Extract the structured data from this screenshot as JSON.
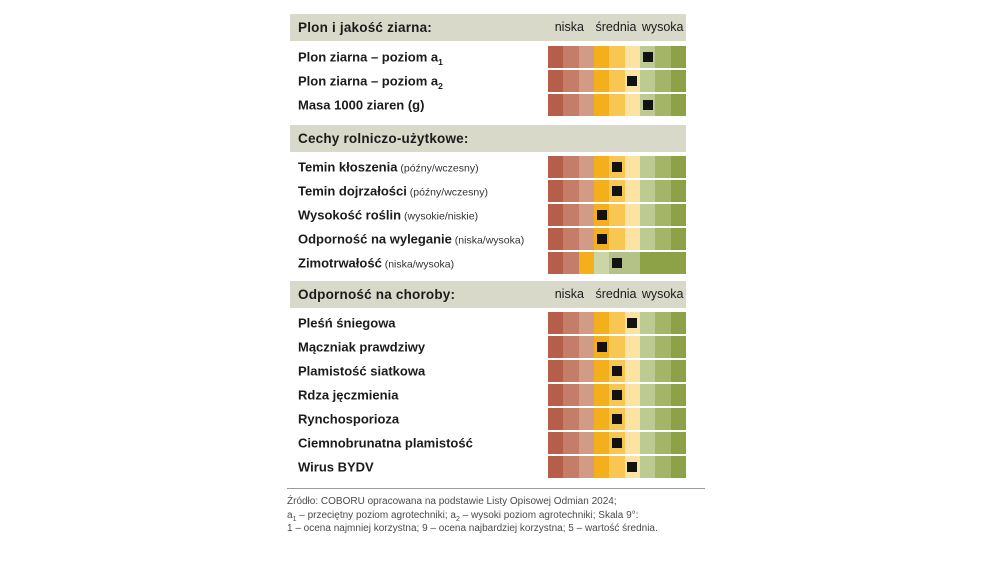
{
  "scale_labels": [
    "niska",
    "średnia",
    "wysoka"
  ],
  "colors": {
    "header_bg": "#d9d9ca",
    "marker": "#121212",
    "scales": {
      "standard": [
        "#b55f4a",
        "#c47d69",
        "#d29b86",
        "#f4b01c",
        "#f8c751",
        "#fbe3a3",
        "#bdca92",
        "#a5b567",
        "#8da246"
      ],
      "winter": [
        "#b55f4a",
        "#c47d69",
        "#f4b01c",
        "#ccd5a6",
        "#b4c287",
        "#b4c287",
        "#8da246",
        "#8da246",
        "#8da246"
      ]
    }
  },
  "sections": [
    {
      "id": "plon-i-jakosc-ziarna",
      "title": "Plon i jakość ziarna:",
      "show_scale_labels": true,
      "rows": [
        {
          "label": "Plon ziarna – poziom a",
          "sub": "1",
          "note": "",
          "value": 7,
          "scale": "standard"
        },
        {
          "label": "Plon ziarna – poziom a",
          "sub": "2",
          "note": "",
          "value": 6,
          "scale": "standard"
        },
        {
          "label": "Masa 1000 ziaren (g)",
          "sub": "",
          "note": "",
          "value": 7,
          "scale": "standard"
        }
      ]
    },
    {
      "id": "cechy-rolniczo-uzytkowe",
      "title": "Cechy rolniczo-użytkowe:",
      "show_scale_labels": false,
      "rows": [
        {
          "label": "Temin kłoszenia",
          "sub": "",
          "note": "(późny/wczesny)",
          "value": 5,
          "scale": "standard"
        },
        {
          "label": "Temin dojrzałości",
          "sub": "",
          "note": "(późny/wczesny)",
          "value": 5,
          "scale": "standard"
        },
        {
          "label": "Wysokość roślin",
          "sub": "",
          "note": "(wysokie/niskie)",
          "value": 4,
          "scale": "standard"
        },
        {
          "label": "Odporność na wyleganie",
          "sub": "",
          "note": "(niska/wysoka)",
          "value": 4,
          "scale": "standard"
        },
        {
          "label": "Zimotrwałość",
          "sub": "",
          "note": "(niska/wysoka)",
          "value": 5,
          "scale": "winter"
        }
      ]
    },
    {
      "id": "odpornosc-na-choroby",
      "title": "Odporność na choroby:",
      "show_scale_labels": true,
      "rows": [
        {
          "label": "Pleśń śniegowa",
          "sub": "",
          "note": "",
          "value": 6,
          "scale": "standard"
        },
        {
          "label": "Mączniak prawdziwy",
          "sub": "",
          "note": "",
          "value": 4,
          "scale": "standard"
        },
        {
          "label": "Plamistość siatkowa",
          "sub": "",
          "note": "",
          "value": 5,
          "scale": "standard"
        },
        {
          "label": "Rdza jęczmienia",
          "sub": "",
          "note": "",
          "value": 5,
          "scale": "standard"
        },
        {
          "label": "Rynchosporioza",
          "sub": "",
          "note": "",
          "value": 5,
          "scale": "standard"
        },
        {
          "label": "Ciemnobrunatna plamistość",
          "sub": "",
          "note": "",
          "value": 5,
          "scale": "standard"
        },
        {
          "label": "Wirus BYDV",
          "sub": "",
          "note": "",
          "value": 6,
          "scale": "standard"
        }
      ]
    }
  ],
  "footer": {
    "lines": [
      [
        {
          "t": "Źródło: COBORU opracowana na podstawie Listy Opisowej Odmian 2024;"
        }
      ],
      [
        {
          "t": "a"
        },
        {
          "s": "1"
        },
        {
          "t": " – przeciętny poziom agrotechniki; a"
        },
        {
          "s": "2"
        },
        {
          "t": " – wysoki poziom agrotechniki; Skala 9°:"
        }
      ],
      [
        {
          "t": "1 – ocena najmniej korzystna; 9 – ocena najbardziej korzystna; 5 – wartość średnia."
        }
      ]
    ]
  },
  "chart_data": {
    "type": "table",
    "title": "Ocena cech odmiany na skali 9-stopniowej",
    "scale": {
      "min": 1,
      "max": 9,
      "mid": 5,
      "labels": [
        "niska",
        "średnia",
        "wysoka"
      ]
    },
    "groups": [
      {
        "group": "Plon i jakość ziarna",
        "rows": [
          {
            "name": "Plon ziarna – poziom a1",
            "rating": 7
          },
          {
            "name": "Plon ziarna – poziom a2",
            "rating": 6
          },
          {
            "name": "Masa 1000 ziaren (g)",
            "rating": 7
          }
        ]
      },
      {
        "group": "Cechy rolniczo-użytkowe",
        "rows": [
          {
            "name": "Temin kłoszenia (późny/wczesny)",
            "rating": 5
          },
          {
            "name": "Temin dojrzałości (późny/wczesny)",
            "rating": 5
          },
          {
            "name": "Wysokość roślin (wysokie/niskie)",
            "rating": 4
          },
          {
            "name": "Odporność na wyleganie (niska/wysoka)",
            "rating": 4
          },
          {
            "name": "Zimotrwałość (niska/wysoka)",
            "rating": 5
          }
        ]
      },
      {
        "group": "Odporność na choroby",
        "rows": [
          {
            "name": "Pleśń śniegowa",
            "rating": 6
          },
          {
            "name": "Mączniak prawdziwy",
            "rating": 4
          },
          {
            "name": "Plamistość siatkowa",
            "rating": 5
          },
          {
            "name": "Rdza jęczmienia",
            "rating": 5
          },
          {
            "name": "Rynchosporioza",
            "rating": 5
          },
          {
            "name": "Ciemnobrunatna plamistość",
            "rating": 5
          },
          {
            "name": "Wirus BYDV",
            "rating": 6
          }
        ]
      }
    ]
  }
}
